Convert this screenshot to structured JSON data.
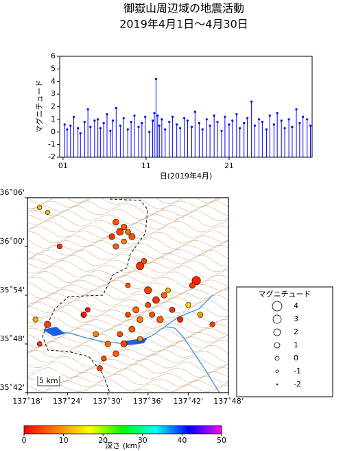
{
  "chart_data": [
    {
      "type": "stem",
      "title": "御嶽山周辺域の地震活動",
      "subtitle": "2019年4月1日～4月30日",
      "xlabel": "日(2019年4月)",
      "ylabel": "マグニチュード",
      "x": [
        1.2,
        1.5,
        1.9,
        2.3,
        2.8,
        3.1,
        3.6,
        4.0,
        4.3,
        4.8,
        5.2,
        5.5,
        5.9,
        6.3,
        6.7,
        7.0,
        7.4,
        7.9,
        8.3,
        8.8,
        9.2,
        9.6,
        10.1,
        10.5,
        10.9,
        11.4,
        11.8,
        12.0,
        12.2,
        12.4,
        12.6,
        12.9,
        13.3,
        13.8,
        14.2,
        14.7,
        15.1,
        15.6,
        16.0,
        16.5,
        16.9,
        17.4,
        17.8,
        18.3,
        18.7,
        19.2,
        19.6,
        20.1,
        20.5,
        21.0,
        21.4,
        21.9,
        22.3,
        22.8,
        23.2,
        23.7,
        24.1,
        24.6,
        25.0,
        25.5,
        25.9,
        26.4,
        26.8,
        27.3,
        27.7,
        28.2,
        28.6,
        29.1,
        29.5,
        29.9,
        30.4,
        30.8
      ],
      "values": [
        0.6,
        0.2,
        0.5,
        1.2,
        0.3,
        -0.1,
        0.8,
        1.8,
        0.4,
        0.9,
        1.0,
        0.3,
        0.7,
        1.4,
        0.1,
        0.9,
        1.9,
        0.5,
        1.1,
        0.2,
        0.8,
        1.3,
        0.4,
        0.7,
        1.2,
        0.0,
        0.9,
        1.5,
        4.2,
        1.3,
        0.5,
        1.0,
        0.2,
        0.8,
        1.2,
        0.6,
        0.3,
        1.1,
        0.9,
        0.4,
        1.6,
        0.7,
        0.2,
        1.0,
        0.5,
        1.3,
        0.8,
        0.1,
        1.2,
        0.6,
        0.9,
        1.4,
        0.3,
        0.7,
        1.1,
        2.4,
        0.5,
        1.0,
        0.8,
        0.2,
        1.3,
        0.6,
        1.5,
        0.9,
        0.3,
        1.0,
        0.4,
        1.8,
        0.7,
        1.2,
        1.0,
        0.5
      ],
      "color": "#0000ff",
      "xlim": [
        0.6,
        31
      ],
      "ylim": [
        -2,
        6
      ],
      "xticks": [
        {
          "value": 1,
          "label": "01"
        },
        {
          "value": 11,
          "label": "11"
        },
        {
          "value": 21,
          "label": "21"
        }
      ],
      "yticks": [
        -2,
        -1,
        0,
        1,
        2,
        3,
        4,
        5,
        6
      ]
    },
    {
      "type": "map-scatter",
      "x": [
        137.52,
        137.54,
        137.53,
        137.55,
        137.51,
        137.54,
        137.52,
        137.56,
        137.58,
        137.59,
        137.72,
        137.71,
        137.62,
        137.64,
        137.6,
        137.57,
        137.55,
        137.58,
        137.61,
        137.63,
        137.66,
        137.68,
        137.56,
        137.53,
        137.5,
        137.54,
        137.58,
        137.52,
        137.49,
        137.47,
        137.44,
        137.45,
        137.35,
        137.32,
        137.33,
        137.33,
        137.35,
        137.38,
        137.73,
        137.76,
        137.65,
        137.7,
        137.6,
        137.48,
        137.55
      ],
      "y": [
        36.05,
        36.04,
        36.03,
        36.03,
        36.02,
        36.01,
        36.0,
        36.02,
        35.96,
        35.97,
        35.93,
        35.92,
        35.89,
        35.9,
        35.88,
        35.87,
        35.86,
        35.85,
        35.86,
        35.85,
        35.87,
        35.85,
        35.83,
        35.82,
        35.8,
        35.8,
        35.81,
        35.78,
        35.77,
        35.82,
        35.86,
        35.87,
        35.84,
        35.85,
        35.8,
        36.08,
        36.07,
        36.0,
        35.86,
        35.84,
        35.91,
        35.88,
        35.91,
        35.75,
        35.92
      ],
      "depth": [
        5,
        6,
        4,
        7,
        3,
        8,
        6,
        5,
        3,
        5,
        2,
        4,
        3,
        6,
        5,
        7,
        4,
        8,
        5,
        6,
        3,
        2,
        6,
        5,
        7,
        4,
        9,
        6,
        5,
        8,
        1,
        2,
        4,
        11,
        3,
        12,
        12,
        3,
        10,
        4,
        12,
        14,
        4,
        4,
        5
      ],
      "magnitude": [
        1.5,
        1.2,
        2.0,
        1.0,
        1.3,
        0.8,
        1.1,
        1.6,
        2.5,
        1.0,
        3.2,
        1.2,
        2.0,
        1.3,
        1.0,
        1.6,
        0.9,
        1.4,
        1.1,
        1.8,
        1.0,
        1.2,
        1.5,
        1.0,
        1.2,
        1.6,
        0.9,
        1.3,
        0.8,
        1.0,
        1.2,
        0.6,
        1.8,
        0.8,
        0.5,
        0.4,
        0.3,
        0.7,
        1.0,
        0.8,
        0.5,
        0.7,
        2.2,
        0.9,
        0.6
      ],
      "xlim": [
        137.3,
        137.8
      ],
      "ylim": [
        35.7,
        36.1
      ],
      "xticks": [
        {
          "value": 137.3,
          "label": "137˚18'"
        },
        {
          "value": 137.4,
          "label": "137˚24'"
        },
        {
          "value": 137.5,
          "label": "137˚30'"
        },
        {
          "value": 137.6,
          "label": "137˚36'"
        },
        {
          "value": 137.7,
          "label": "137˚42'"
        },
        {
          "value": 137.8,
          "label": "137˚48'"
        }
      ],
      "yticks": [
        {
          "value": 35.7,
          "label": "35˚42'"
        },
        {
          "value": 35.8,
          "label": "35˚48'"
        },
        {
          "value": 35.9,
          "label": "35˚54'"
        },
        {
          "value": 36.0,
          "label": "36˚00'"
        },
        {
          "value": 36.1,
          "label": "36˚06'"
        }
      ],
      "scale_bar": "5 km",
      "size_legend": {
        "title": "マグニチュード",
        "values": [
          4,
          3,
          2,
          1,
          0,
          -1,
          -2
        ]
      },
      "colorbar": {
        "label": "深さ (km)",
        "lim": [
          0,
          50
        ],
        "ticks": [
          0,
          10,
          20,
          30,
          40,
          50
        ],
        "colors": [
          "#ff0000",
          "#ff8000",
          "#ffff00",
          "#00ff00",
          "#00ffff",
          "#0000ff",
          "#ff00ff"
        ]
      }
    }
  ]
}
